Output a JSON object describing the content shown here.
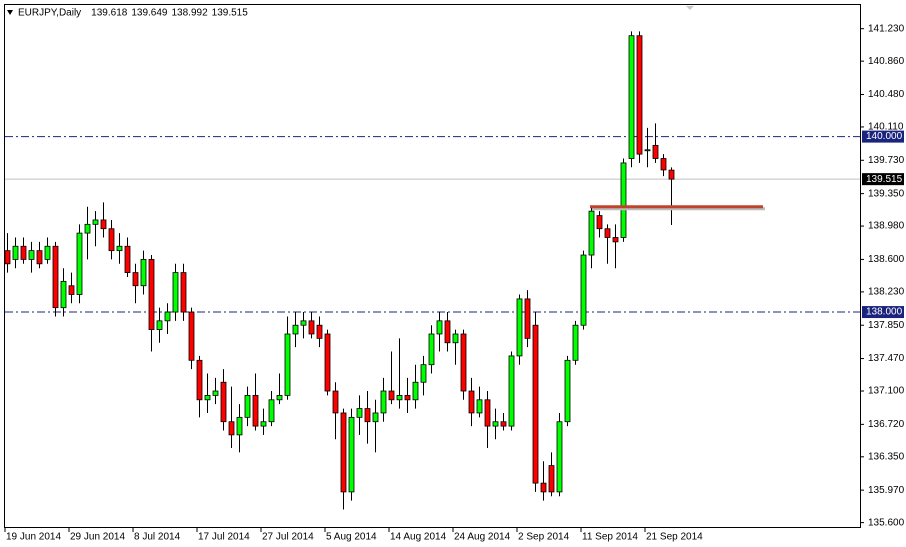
{
  "chart_data": {
    "type": "candlestick",
    "title": "EURJPY,Daily",
    "categories": [
      "19 Jun 2014",
      null,
      null,
      null,
      null,
      null,
      null,
      null,
      "29 Jun 2014",
      null,
      null,
      null,
      null,
      null,
      null,
      null,
      "8 Jul 2014",
      null,
      null,
      null,
      null,
      null,
      null,
      null,
      "17 Jul 2014",
      null,
      null,
      null,
      null,
      null,
      null,
      null,
      "27 Jul 2014",
      null,
      null,
      null,
      null,
      null,
      null,
      null,
      "5 Aug 2014",
      null,
      null,
      null,
      null,
      null,
      null,
      null,
      "14 Aug 2014",
      null,
      null,
      null,
      null,
      null,
      null,
      null,
      "24 Aug 2014",
      null,
      null,
      null,
      null,
      null,
      null,
      null,
      "2 Sep 2014",
      null,
      null,
      null,
      null,
      null,
      null,
      null,
      "11 Sep 2014",
      null,
      null,
      null,
      null,
      null,
      null,
      null,
      "21 Sep 2014",
      null,
      null,
      null
    ],
    "open": [
      138.7,
      138.6,
      138.75,
      138.6,
      138.7,
      138.6,
      138.75,
      138.05,
      138.3,
      138.2,
      138.9,
      139.0,
      139.05,
      138.95,
      138.7,
      138.75,
      138.45,
      138.3,
      138.6,
      137.8,
      137.9,
      138.0,
      138.45,
      138.0,
      137.45,
      137.0,
      137.05,
      137.2,
      136.75,
      136.6,
      136.8,
      137.05,
      136.7,
      136.75,
      137.0,
      137.05,
      137.75,
      137.85,
      137.9,
      137.85,
      137.75,
      137.1,
      136.85,
      135.95,
      136.8,
      136.9,
      136.75,
      136.85,
      137.1,
      137.0,
      137.05,
      137.0,
      137.2,
      137.4,
      137.75,
      137.9,
      137.65,
      137.75,
      137.1,
      136.85,
      137.0,
      136.7,
      136.75,
      136.7,
      137.5,
      138.15,
      137.85,
      136.05,
      136.25,
      135.95,
      136.75,
      137.45,
      137.85,
      138.65,
      139.1,
      138.95,
      138.85,
      138.85,
      139.75,
      141.15,
      139.85,
      139.9,
      139.75,
      139.618
    ],
    "high": [
      138.9,
      138.85,
      138.85,
      138.8,
      138.8,
      138.85,
      138.8,
      138.5,
      138.45,
      139.0,
      139.2,
      139.15,
      139.25,
      139.05,
      138.9,
      138.85,
      138.55,
      138.7,
      138.65,
      138.05,
      138.1,
      138.55,
      138.55,
      138.05,
      137.5,
      137.3,
      137.25,
      137.35,
      137.15,
      136.95,
      137.15,
      137.3,
      136.9,
      137.1,
      137.3,
      137.95,
      138.0,
      138.0,
      138.0,
      137.95,
      137.8,
      137.2,
      136.9,
      136.9,
      137.05,
      137.1,
      137.0,
      137.25,
      137.55,
      137.7,
      137.25,
      137.4,
      137.5,
      137.85,
      138.0,
      138.0,
      137.8,
      137.8,
      137.25,
      137.15,
      137.1,
      136.9,
      136.85,
      137.55,
      138.2,
      138.25,
      138.0,
      136.3,
      136.4,
      136.85,
      137.5,
      137.9,
      138.7,
      139.2,
      139.15,
      139.0,
      139.0,
      139.75,
      141.2,
      141.2,
      140.1,
      140.15,
      139.8,
      139.649
    ],
    "low": [
      138.45,
      138.5,
      138.55,
      138.45,
      138.5,
      138.55,
      137.95,
      137.95,
      138.1,
      138.1,
      138.6,
      138.75,
      138.85,
      138.6,
      138.55,
      138.4,
      138.1,
      138.2,
      137.55,
      137.65,
      137.75,
      137.9,
      137.9,
      137.35,
      136.8,
      136.85,
      136.95,
      136.65,
      136.45,
      136.4,
      136.7,
      136.65,
      136.6,
      136.7,
      136.95,
      137.0,
      137.6,
      137.7,
      137.7,
      137.6,
      137.05,
      136.55,
      135.75,
      135.85,
      136.6,
      136.5,
      136.4,
      136.75,
      136.95,
      136.9,
      136.85,
      136.9,
      137.05,
      137.3,
      137.55,
      137.55,
      137.4,
      137.0,
      136.7,
      136.8,
      136.45,
      136.55,
      136.65,
      136.65,
      137.4,
      137.6,
      135.95,
      135.85,
      135.9,
      135.9,
      136.7,
      137.4,
      137.8,
      138.5,
      138.85,
      138.55,
      138.5,
      138.8,
      139.65,
      139.7,
      139.65,
      139.7,
      139.55,
      138.992
    ],
    "close": [
      138.55,
      138.75,
      138.6,
      138.7,
      138.55,
      138.75,
      138.05,
      138.35,
      138.2,
      138.9,
      139.0,
      139.05,
      138.95,
      138.7,
      138.75,
      138.45,
      138.3,
      138.6,
      137.8,
      137.9,
      138.0,
      138.45,
      138.0,
      137.45,
      137.0,
      137.05,
      137.1,
      136.75,
      136.6,
      136.8,
      137.05,
      136.7,
      136.75,
      137.0,
      137.05,
      137.75,
      137.85,
      137.9,
      137.75,
      137.7,
      137.1,
      136.85,
      135.95,
      136.8,
      136.9,
      136.75,
      136.85,
      137.1,
      137.0,
      137.05,
      137.0,
      137.2,
      137.4,
      137.75,
      137.9,
      137.65,
      137.75,
      137.1,
      136.85,
      137.0,
      136.7,
      136.75,
      136.7,
      137.5,
      138.15,
      137.7,
      136.05,
      135.95,
      135.95,
      136.75,
      137.45,
      137.85,
      138.65,
      139.15,
      138.95,
      138.85,
      138.8,
      139.7,
      141.15,
      139.8,
      139.85,
      139.75,
      139.62,
      139.515
    ],
    "up_color": "#00ff00",
    "down_color": "#ff0000",
    "ylim": [
      135.55,
      141.5
    ],
    "yticks": [
      {
        "value": 141.23,
        "label": "141.230"
      },
      {
        "value": 140.86,
        "label": "140.860"
      },
      {
        "value": 140.48,
        "label": "140.480"
      },
      {
        "value": 140.11,
        "label": "140.110"
      },
      {
        "value": 139.73,
        "label": "139.730"
      },
      {
        "value": 139.35,
        "label": "139.350"
      },
      {
        "value": 138.98,
        "label": "138.980"
      },
      {
        "value": 138.6,
        "label": "138.600"
      },
      {
        "value": 138.23,
        "label": "138.230"
      },
      {
        "value": 137.85,
        "label": "137.850"
      },
      {
        "value": 137.47,
        "label": "137.470"
      },
      {
        "value": 137.1,
        "label": "137.100"
      },
      {
        "value": 136.72,
        "label": "136.720"
      },
      {
        "value": 136.35,
        "label": "136.350"
      },
      {
        "value": 135.97,
        "label": "135.970"
      },
      {
        "value": 135.6,
        "label": "135.600"
      }
    ],
    "levels": [
      {
        "value": 140,
        "label": "140.000"
      },
      {
        "value": 138,
        "label": "138.000"
      }
    ],
    "level_color": "#1a237e",
    "support_line": {
      "value": 139.2,
      "color": "#c0432c"
    }
  }
}
